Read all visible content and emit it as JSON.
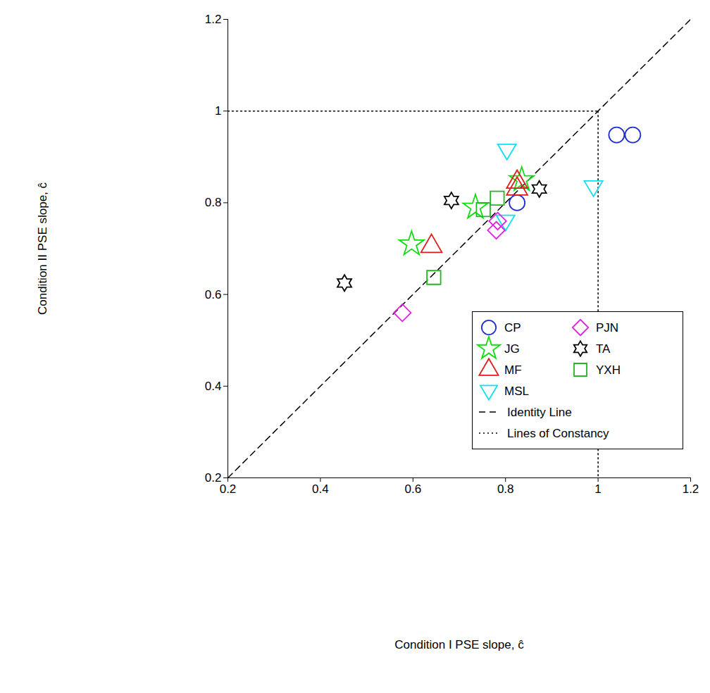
{
  "chart_data": {
    "type": "scatter",
    "x_label": "Condition I PSE slope, ĉ",
    "y_label": "Condition II PSE slope, ĉ",
    "xlim": [
      0.2,
      1.2
    ],
    "ylim": [
      0.2,
      1.2
    ],
    "xticks": [
      0.2,
      0.4,
      0.6,
      0.8,
      1,
      1.2
    ],
    "yticks": [
      0.2,
      0.4,
      0.6,
      0.8,
      1,
      1.2
    ],
    "legend": "bottom-right",
    "series": [
      {
        "name": "CP",
        "color": "#1f2fd0",
        "marker": "circle",
        "x": [
          1.04,
          1.075,
          0.825
        ],
        "y": [
          0.948,
          0.948,
          0.8
        ]
      },
      {
        "name": "JG",
        "color": "#11dd11",
        "marker": "star",
        "x": [
          0.597,
          0.735,
          0.835
        ],
        "y": [
          0.71,
          0.79,
          0.85
        ]
      },
      {
        "name": "MF",
        "color": "#e01b1b",
        "marker": "triangle",
        "x": [
          0.64,
          0.825,
          0.825
        ],
        "y": [
          0.705,
          0.845,
          0.83
        ]
      },
      {
        "name": "MSL",
        "color": "#11e0ee",
        "marker": "triangle-down",
        "x": [
          0.803,
          0.99,
          0.8
        ],
        "y": [
          0.915,
          0.835,
          0.76
        ]
      },
      {
        "name": "PJN",
        "color": "#e022e0",
        "marker": "diamond",
        "x": [
          0.577,
          0.78,
          0.783
        ],
        "y": [
          0.56,
          0.74,
          0.76
        ]
      },
      {
        "name": "TA",
        "color": "#000000",
        "marker": "hexagram",
        "x": [
          0.452,
          0.683,
          0.873
        ],
        "y": [
          0.625,
          0.805,
          0.83
        ]
      },
      {
        "name": "YXH",
        "color": "#22b822",
        "marker": "square",
        "x": [
          0.645,
          0.752,
          0.782
        ],
        "y": [
          0.637,
          0.785,
          0.81
        ]
      }
    ],
    "reference_lines": [
      {
        "name": "Identity Line",
        "line_style": "dashed",
        "from": [
          0.2,
          0.2
        ],
        "to": [
          1.2,
          1.2
        ]
      },
      {
        "name": "Lines of Constancy",
        "line_style": "dotted",
        "x": 1,
        "y": 1
      }
    ]
  }
}
